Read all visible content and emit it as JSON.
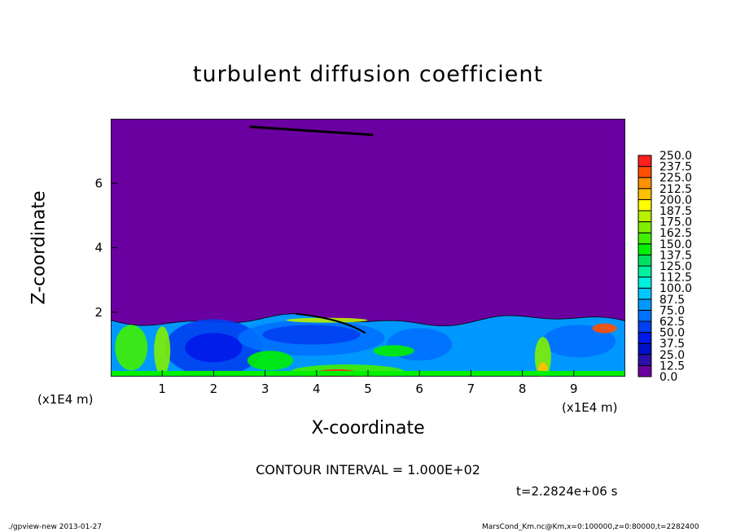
{
  "chart_data": {
    "type": "heatmap",
    "title": "turbulent diffusion coefficient",
    "xlabel": "X-coordinate",
    "ylabel": "Z-coordinate",
    "x_unit_label": "(x1E4 m)",
    "y_unit_label": "(x1E4 m)",
    "xlim": [
      0,
      10
    ],
    "ylim": [
      0,
      8
    ],
    "x_ticks": [
      1,
      2,
      3,
      4,
      5,
      6,
      7,
      8,
      9
    ],
    "y_ticks": [
      2,
      4,
      6
    ],
    "colorbar": {
      "levels": [
        "0.0",
        "12.5",
        "25.0",
        "37.5",
        "50.0",
        "62.5",
        "75.0",
        "87.5",
        "100.0",
        "112.5",
        "125.0",
        "137.5",
        "150.0",
        "162.5",
        "175.0",
        "187.5",
        "200.0",
        "212.5",
        "225.0",
        "237.5",
        "250.0"
      ],
      "colors": [
        "#6a00a0",
        "#2a10a8",
        "#0010c8",
        "#0018e8",
        "#0040f0",
        "#0070ff",
        "#0098ff",
        "#00c8ff",
        "#00f0e0",
        "#00f0a0",
        "#00e060",
        "#00f000",
        "#40f000",
        "#80f000",
        "#b8f000",
        "#ffff00",
        "#ffc000",
        "#ff9000",
        "#ff5000",
        "#ff2020",
        "#ff8080"
      ]
    },
    "contour_interval": "CONTOUR INTERVAL = 1.000E+02",
    "time_label": "t=2.2824e+06 s",
    "background_value": 0.0,
    "grid": false
  },
  "footer": {
    "left": "./gpview-new  2013-01-27",
    "right": "MarsCond_Km.nc@Km,x=0:100000,z=0:80000,t=2282400"
  }
}
